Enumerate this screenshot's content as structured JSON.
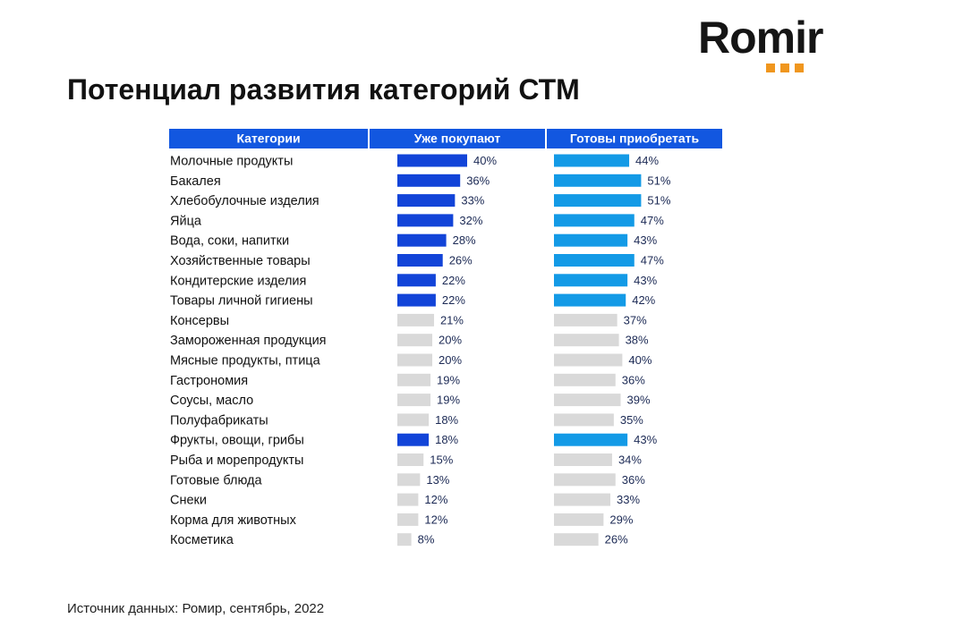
{
  "logo": {
    "text": "Romir"
  },
  "title": "Потенциал развития категорий СТМ",
  "source": "Источник данных: Ромир, сентябрь, 2022",
  "colors": {
    "header": "#1257e0",
    "bought_highlight": "#1244d8",
    "ready_highlight": "#139ae6",
    "neutral": "#d9d9d9",
    "logo_dots": "#f0961e"
  },
  "chart_data": {
    "type": "table",
    "columns": [
      "Категории",
      "Уже покупают",
      "Готовы приобретать"
    ],
    "categories": [
      "Молочные продукты",
      "Бакалея",
      "Хлебобулочные изделия",
      "Яйца",
      "Вода, соки, напитки",
      "Хозяйственные товары",
      "Кондитерские изделия",
      "Товары личной гигиены",
      "Консервы",
      "Замороженная продукция",
      "Мясные продукты, птица",
      "Гастрономия",
      "Соусы, масло",
      "Полуфабрикаты",
      "Фрукты, овощи, грибы",
      "Рыба и морепродукты",
      "Готовые блюда",
      "Снеки",
      "Корма для животных",
      "Косметика"
    ],
    "series": [
      {
        "name": "Уже покупают",
        "values": [
          40,
          36,
          33,
          32,
          28,
          26,
          22,
          22,
          21,
          20,
          20,
          19,
          19,
          18,
          18,
          15,
          13,
          12,
          12,
          8
        ]
      },
      {
        "name": "Готовы приобретать",
        "values": [
          44,
          51,
          51,
          47,
          43,
          47,
          43,
          42,
          37,
          38,
          40,
          36,
          39,
          35,
          43,
          34,
          36,
          33,
          29,
          26
        ]
      }
    ],
    "highlighted": [
      true,
      true,
      true,
      true,
      true,
      true,
      true,
      true,
      false,
      false,
      false,
      false,
      false,
      false,
      true,
      false,
      false,
      false,
      false,
      false
    ],
    "unit": "%"
  }
}
